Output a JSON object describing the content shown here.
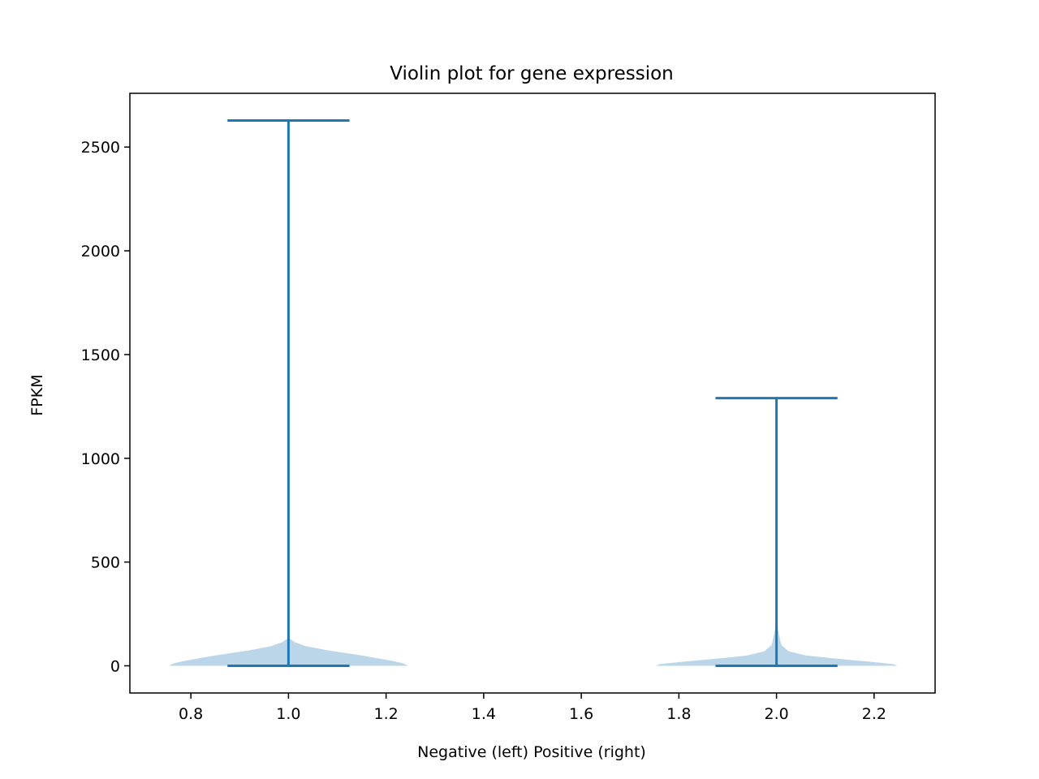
{
  "chart_data": {
    "type": "violin",
    "title": "Violin plot for gene expression",
    "xlabel": "Negative (left) Positive (right)",
    "ylabel": "FPKM",
    "xlim": [
      0.675,
      2.325
    ],
    "ylim": [
      -131,
      2759
    ],
    "x_ticks": [
      0.8,
      1.0,
      1.2,
      1.4,
      1.6,
      1.8,
      2.0,
      2.2
    ],
    "x_tick_labels": [
      "0.8",
      "1.0",
      "1.2",
      "1.4",
      "1.6",
      "1.8",
      "2.0",
      "2.2"
    ],
    "y_ticks": [
      0,
      500,
      1000,
      1500,
      2000,
      2500
    ],
    "y_tick_labels": [
      "0",
      "500",
      "1000",
      "1500",
      "2000",
      "2500"
    ],
    "grid": false,
    "colors": {
      "body": "#1f77b4",
      "body_alpha": 0.3,
      "lines": "#1f77b4"
    },
    "series": [
      {
        "position": 1.0,
        "min": 0,
        "max": 2628,
        "cap_halfwidth": 0.125,
        "density_profile": [
          {
            "y": 0,
            "halfwidth": 0.245
          },
          {
            "y": 12,
            "halfwidth": 0.235
          },
          {
            "y": 25,
            "halfwidth": 0.21
          },
          {
            "y": 50,
            "halfwidth": 0.15
          },
          {
            "y": 75,
            "halfwidth": 0.08
          },
          {
            "y": 95,
            "halfwidth": 0.035
          },
          {
            "y": 115,
            "halfwidth": 0.012
          },
          {
            "y": 135,
            "halfwidth": 0.0
          }
        ]
      },
      {
        "position": 2.0,
        "min": 0,
        "max": 1290,
        "cap_halfwidth": 0.125,
        "density_profile": [
          {
            "y": 0,
            "halfwidth": 0.248
          },
          {
            "y": 8,
            "halfwidth": 0.24
          },
          {
            "y": 20,
            "halfwidth": 0.19
          },
          {
            "y": 35,
            "halfwidth": 0.12
          },
          {
            "y": 50,
            "halfwidth": 0.06
          },
          {
            "y": 70,
            "halfwidth": 0.025
          },
          {
            "y": 100,
            "halfwidth": 0.01
          },
          {
            "y": 160,
            "halfwidth": 0.004
          },
          {
            "y": 225,
            "halfwidth": 0.0
          }
        ]
      }
    ]
  }
}
